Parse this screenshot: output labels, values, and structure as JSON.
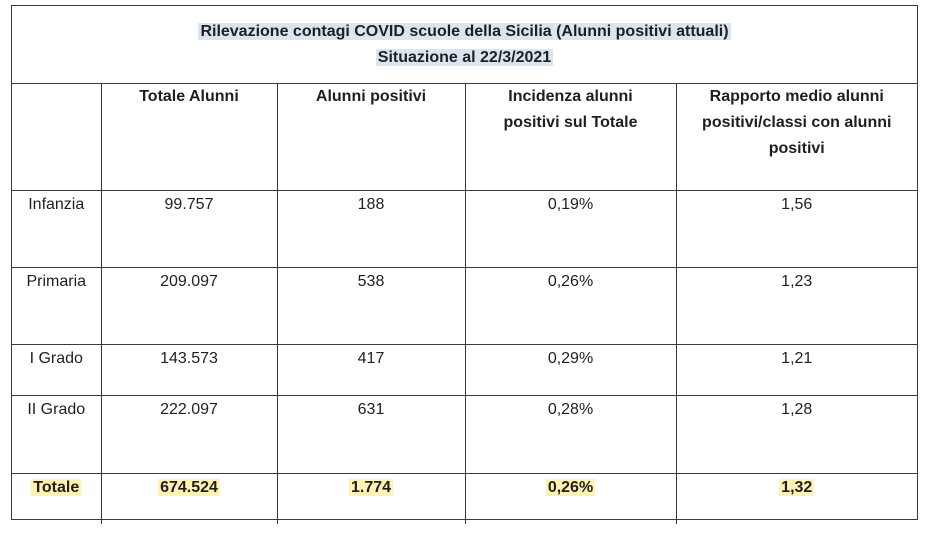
{
  "title": {
    "line1": "Rilevazione contagi COVID scuole della Sicilia (Alunni positivi attuali)",
    "line2": "Situazione al 22/3/2021"
  },
  "table": {
    "headers": [
      "",
      "Totale Alunni",
      "Alunni positivi",
      "Incidenza alunni positivi sul Totale",
      "Rapporto medio alunni positivi/classi con  alunni positivi"
    ],
    "rows": [
      {
        "label": "Infanzia",
        "totale_alunni": "99.757",
        "alunni_positivi": "188",
        "incidenza": "0,19%",
        "rapporto": "1,56"
      },
      {
        "label": "Primaria",
        "totale_alunni": "209.097",
        "alunni_positivi": "538",
        "incidenza": "0,26%",
        "rapporto": "1,23"
      },
      {
        "label": "I Grado",
        "totale_alunni": "143.573",
        "alunni_positivi": "417",
        "incidenza": "0,29%",
        "rapporto": "1,21"
      },
      {
        "label": "II Grado",
        "totale_alunni": "222.097",
        "alunni_positivi": "631",
        "incidenza": "0,28%",
        "rapporto": "1,28"
      }
    ],
    "total": {
      "label": "Totale",
      "totale_alunni": "674.524",
      "alunni_positivi": "1.774",
      "incidenza": "0,26%",
      "rapporto": "1,32"
    }
  },
  "colors": {
    "title_highlight": "#dbe5f1",
    "total_highlight": "#fff2b3",
    "border": "#3a3a3a"
  }
}
